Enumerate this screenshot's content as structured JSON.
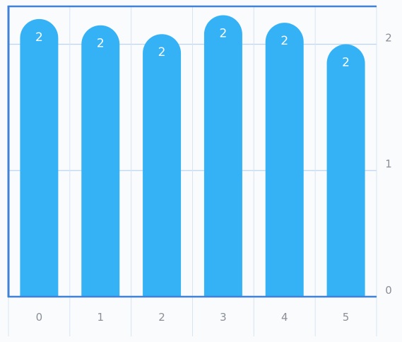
{
  "chart_data": {
    "type": "bar",
    "categories": [
      "0",
      "1",
      "2",
      "3",
      "4",
      "5"
    ],
    "values": [
      2.2,
      2.15,
      2.08,
      2.23,
      2.17,
      2.0
    ],
    "data_labels": [
      "2",
      "2",
      "2",
      "2",
      "2",
      "2"
    ],
    "y_ticks": [
      "0",
      "1",
      "2"
    ],
    "ylim": [
      0,
      2.3
    ],
    "y_axis_side": "right",
    "grid": true,
    "bar_color": "#35b2f5",
    "axis_color": "#3f82d6",
    "grid_color": "#bcd6f2"
  }
}
